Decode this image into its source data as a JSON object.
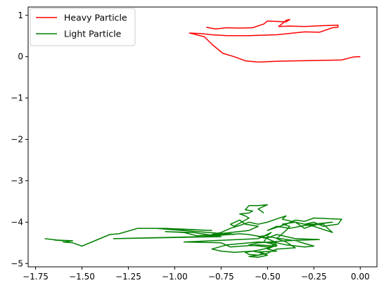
{
  "chart_data": {
    "type": "line",
    "title": "",
    "xlabel": "",
    "ylabel": "",
    "xlim": [
      -1.79,
      0.09
    ],
    "ylim": [
      -5.08,
      1.2
    ],
    "x_ticks": [
      -1.75,
      -1.5,
      -1.25,
      -1.0,
      -0.75,
      -0.5,
      -0.25,
      0.0
    ],
    "x_tick_labels": [
      "−1.75",
      "−1.50",
      "−1.25",
      "−1.00",
      "−0.75",
      "−0.50",
      "−0.25",
      "0.00"
    ],
    "y_ticks": [
      1,
      0,
      -1,
      -2,
      -3,
      -4,
      -5
    ],
    "y_tick_labels": [
      "1",
      "0",
      "−1",
      "−2",
      "−3",
      "−4",
      "−5"
    ],
    "grid": false,
    "legend_position": "upper-left",
    "series": [
      {
        "name": "Heavy Particle",
        "color": "#ff0000",
        "points": [
          [
            0.0,
            0.0
          ],
          [
            -0.01,
            0.0
          ],
          [
            -0.04,
            -0.01
          ],
          [
            -0.1,
            -0.08
          ],
          [
            -0.2,
            -0.09
          ],
          [
            -0.35,
            -0.1
          ],
          [
            -0.45,
            -0.11
          ],
          [
            -0.55,
            -0.13
          ],
          [
            -0.62,
            -0.1
          ],
          [
            -0.68,
            0.0
          ],
          [
            -0.74,
            0.08
          ],
          [
            -0.8,
            0.3
          ],
          [
            -0.84,
            0.48
          ],
          [
            -0.9,
            0.55
          ],
          [
            -0.92,
            0.57
          ],
          [
            -0.86,
            0.56
          ],
          [
            -0.8,
            0.53
          ],
          [
            -0.72,
            0.51
          ],
          [
            -0.6,
            0.51
          ],
          [
            -0.45,
            0.53
          ],
          [
            -0.3,
            0.6
          ],
          [
            -0.22,
            0.59
          ],
          [
            -0.15,
            0.7
          ],
          [
            -0.12,
            0.71
          ],
          [
            -0.12,
            0.76
          ],
          [
            -0.2,
            0.75
          ],
          [
            -0.3,
            0.73
          ],
          [
            -0.38,
            0.74
          ],
          [
            -0.44,
            0.73
          ],
          [
            -0.42,
            0.8
          ],
          [
            -0.4,
            0.88
          ],
          [
            -0.38,
            0.9
          ],
          [
            -0.4,
            0.84
          ],
          [
            -0.44,
            0.85
          ],
          [
            -0.5,
            0.86
          ],
          [
            -0.52,
            0.79
          ],
          [
            -0.58,
            0.7
          ],
          [
            -0.65,
            0.69
          ],
          [
            -0.72,
            0.7
          ],
          [
            -0.78,
            0.67
          ],
          [
            -0.83,
            0.71
          ]
        ]
      },
      {
        "name": "Light Particle",
        "color": "#008000",
        "points": [
          [
            -1.7,
            -4.4
          ],
          [
            -1.6,
            -4.45
          ],
          [
            -1.65,
            -4.43
          ],
          [
            -1.55,
            -4.45
          ],
          [
            -1.6,
            -4.48
          ],
          [
            -1.55,
            -4.5
          ],
          [
            -1.5,
            -4.58
          ],
          [
            -1.35,
            -4.3
          ],
          [
            -1.3,
            -4.28
          ],
          [
            -1.2,
            -4.15
          ],
          [
            -1.05,
            -4.15
          ],
          [
            -0.8,
            -4.2
          ],
          [
            -1.1,
            -4.15
          ],
          [
            -0.68,
            -4.3
          ],
          [
            -0.7,
            -4.28
          ],
          [
            -0.88,
            -4.33
          ],
          [
            -0.95,
            -4.25
          ],
          [
            -1.05,
            -4.23
          ],
          [
            -0.9,
            -4.25
          ],
          [
            -0.75,
            -4.35
          ],
          [
            -1.33,
            -4.4
          ],
          [
            -0.85,
            -4.35
          ],
          [
            -0.65,
            -4.28
          ],
          [
            -0.6,
            -4.3
          ],
          [
            -0.5,
            -4.38
          ],
          [
            -0.45,
            -4.3
          ],
          [
            -0.35,
            -4.4
          ],
          [
            -0.22,
            -4.42
          ],
          [
            -0.4,
            -4.45
          ],
          [
            -0.55,
            -4.5
          ],
          [
            -0.6,
            -4.55
          ],
          [
            -0.5,
            -4.6
          ],
          [
            -0.45,
            -4.58
          ],
          [
            -0.55,
            -4.55
          ],
          [
            -0.7,
            -4.6
          ],
          [
            -0.75,
            -4.5
          ],
          [
            -0.95,
            -4.48
          ],
          [
            -0.55,
            -4.4
          ],
          [
            -0.48,
            -4.25
          ],
          [
            -0.5,
            -4.32
          ],
          [
            -0.55,
            -4.35
          ],
          [
            -0.5,
            -4.4
          ],
          [
            -0.45,
            -4.5
          ],
          [
            -0.5,
            -4.63
          ],
          [
            -0.55,
            -4.68
          ],
          [
            -0.62,
            -4.73
          ],
          [
            -0.6,
            -4.78
          ],
          [
            -0.55,
            -4.8
          ],
          [
            -0.52,
            -4.75
          ],
          [
            -0.58,
            -4.7
          ],
          [
            -0.68,
            -4.73
          ],
          [
            -0.75,
            -4.7
          ],
          [
            -0.8,
            -4.65
          ],
          [
            -0.72,
            -4.55
          ],
          [
            -0.55,
            -4.48
          ],
          [
            -0.45,
            -4.5
          ],
          [
            -0.4,
            -4.55
          ],
          [
            -0.3,
            -4.6
          ],
          [
            -0.25,
            -4.58
          ],
          [
            -0.35,
            -4.45
          ],
          [
            -0.5,
            -4.35
          ],
          [
            -0.52,
            -4.48
          ],
          [
            -0.45,
            -4.55
          ],
          [
            -0.5,
            -4.65
          ],
          [
            -0.45,
            -4.7
          ],
          [
            -0.55,
            -4.72
          ],
          [
            -0.5,
            -4.8
          ],
          [
            -0.55,
            -4.85
          ],
          [
            -0.6,
            -4.83
          ],
          [
            -0.55,
            -4.8
          ],
          [
            -0.5,
            -4.75
          ],
          [
            -0.45,
            -4.65
          ],
          [
            -0.35,
            -4.62
          ],
          [
            -0.4,
            -4.48
          ],
          [
            -0.45,
            -4.4
          ],
          [
            -0.4,
            -4.2
          ],
          [
            -0.38,
            -4.1
          ],
          [
            -0.42,
            -4.05
          ],
          [
            -0.35,
            -4.0
          ],
          [
            -0.25,
            -4.1
          ],
          [
            -0.15,
            -4.25
          ],
          [
            -0.2,
            -4.05
          ],
          [
            -0.3,
            -4.08
          ],
          [
            -0.38,
            -4.15
          ],
          [
            -0.45,
            -4.1
          ],
          [
            -0.5,
            -4.2
          ],
          [
            -0.4,
            -4.05
          ],
          [
            -0.35,
            -3.95
          ],
          [
            -0.3,
            -3.98
          ],
          [
            -0.25,
            -3.9
          ],
          [
            -0.1,
            -3.93
          ],
          [
            -0.12,
            -4.05
          ],
          [
            -0.2,
            -4.1
          ],
          [
            -0.25,
            -4.0
          ],
          [
            -0.3,
            -4.05
          ],
          [
            -0.25,
            -4.05
          ],
          [
            -0.15,
            -4.0
          ],
          [
            -0.2,
            -4.03
          ],
          [
            -0.27,
            -4.1
          ],
          [
            -0.3,
            -4.15
          ],
          [
            -0.35,
            -4.0
          ],
          [
            -0.42,
            -3.93
          ],
          [
            -0.4,
            -3.85
          ],
          [
            -0.45,
            -3.92
          ],
          [
            -0.5,
            -4.0
          ],
          [
            -0.55,
            -4.05
          ],
          [
            -0.6,
            -4.0
          ],
          [
            -0.65,
            -4.08
          ],
          [
            -0.7,
            -4.15
          ],
          [
            -0.75,
            -4.25
          ],
          [
            -0.8,
            -4.3
          ],
          [
            -0.6,
            -4.2
          ],
          [
            -0.55,
            -4.1
          ],
          [
            -0.62,
            -4.05
          ],
          [
            -0.65,
            -3.95
          ],
          [
            -0.7,
            -4.05
          ],
          [
            -0.68,
            -4.1
          ],
          [
            -0.6,
            -3.9
          ],
          [
            -0.62,
            -3.85
          ],
          [
            -0.65,
            -3.8
          ],
          [
            -0.6,
            -3.78
          ],
          [
            -0.58,
            -3.73
          ],
          [
            -0.62,
            -3.7
          ],
          [
            -0.6,
            -3.6
          ],
          [
            -0.55,
            -3.6
          ],
          [
            -0.5,
            -3.58
          ],
          [
            -0.55,
            -3.68
          ],
          [
            -0.52,
            -3.78
          ]
        ]
      }
    ]
  }
}
